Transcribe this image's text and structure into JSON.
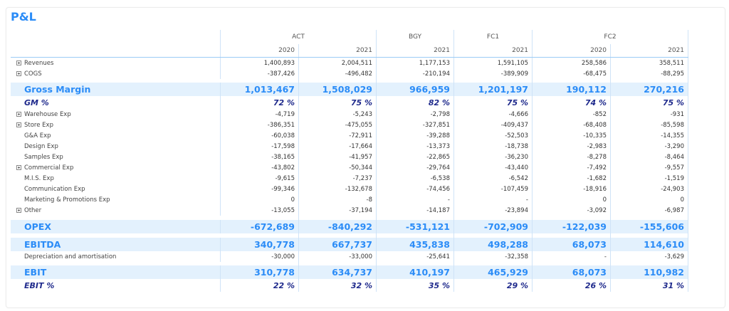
{
  "title": "P&L",
  "colors": {
    "accent": "#2b8cf7",
    "band": "#e3f1fd",
    "pct": "#1f2a8c"
  },
  "header": {
    "groups": [
      {
        "label": "ACT",
        "span": 2
      },
      {
        "label": "BGY",
        "span": 1
      },
      {
        "label": "FC1",
        "span": 1
      },
      {
        "label": "FC2",
        "span": 2
      }
    ],
    "years": [
      "2020",
      "2021",
      "2021",
      "2021",
      "2020",
      "2021"
    ]
  },
  "rows": [
    {
      "label": "Revenues",
      "type": "normal",
      "expand": true,
      "values": [
        "1,400,893",
        "2,004,511",
        "1,177,153",
        "1,591,105",
        "258,586",
        "358,511"
      ]
    },
    {
      "label": "COGS",
      "type": "normal",
      "expand": true,
      "values": [
        "-387,426",
        "-496,482",
        "-210,194",
        "-389,909",
        "-68,475",
        "-88,295"
      ]
    },
    {
      "type": "spacer"
    },
    {
      "label": "Gross Margin",
      "type": "total",
      "values": [
        "1,013,467",
        "1,508,029",
        "966,959",
        "1,201,197",
        "190,112",
        "270,216"
      ]
    },
    {
      "label": "GM %",
      "type": "pct",
      "values": [
        "72 %",
        "75 %",
        "82 %",
        "75 %",
        "74 %",
        "75 %"
      ]
    },
    {
      "label": "Warehouse Exp",
      "type": "normal",
      "expand": true,
      "values": [
        "-4,719",
        "-5,243",
        "-2,798",
        "-4,666",
        "-852",
        "-931"
      ]
    },
    {
      "label": "Store Exp",
      "type": "normal",
      "expand": true,
      "values": [
        "-386,351",
        "-475,055",
        "-327,851",
        "-409,437",
        "-68,408",
        "-85,598"
      ]
    },
    {
      "label": "G&A Exp",
      "type": "normal",
      "expand": false,
      "values": [
        "-60,038",
        "-72,911",
        "-39,288",
        "-52,503",
        "-10,335",
        "-14,355"
      ]
    },
    {
      "label": "Design Exp",
      "type": "normal",
      "expand": false,
      "values": [
        "-17,598",
        "-17,664",
        "-13,373",
        "-18,738",
        "-2,983",
        "-3,290"
      ]
    },
    {
      "label": "Samples Exp",
      "type": "normal",
      "expand": false,
      "values": [
        "-38,165",
        "-41,957",
        "-22,865",
        "-36,230",
        "-8,278",
        "-8,464"
      ]
    },
    {
      "label": "Commercial Exp",
      "type": "normal",
      "expand": true,
      "values": [
        "-43,802",
        "-50,344",
        "-29,764",
        "-43,440",
        "-7,492",
        "-9,557"
      ]
    },
    {
      "label": "M.I.S. Exp",
      "type": "normal",
      "expand": false,
      "values": [
        "-9,615",
        "-7,237",
        "-6,538",
        "-6,542",
        "-1,682",
        "-1,519"
      ]
    },
    {
      "label": "Communication Exp",
      "type": "normal",
      "expand": false,
      "values": [
        "-99,346",
        "-132,678",
        "-74,456",
        "-107,459",
        "-18,916",
        "-24,903"
      ]
    },
    {
      "label": "Marketing & Promotions Exp",
      "type": "normal",
      "expand": false,
      "values": [
        "0",
        "-8",
        "-",
        "-",
        "0",
        "0"
      ]
    },
    {
      "label": "Other",
      "type": "normal",
      "expand": true,
      "values": [
        "-13,055",
        "-37,194",
        "-14,187",
        "-23,894",
        "-3,092",
        "-6,987"
      ]
    },
    {
      "type": "spacer6"
    },
    {
      "label": "OPEX",
      "type": "total",
      "values": [
        "-672,689",
        "-840,292",
        "-531,121",
        "-702,909",
        "-122,039",
        "-155,606"
      ]
    },
    {
      "type": "spacer6"
    },
    {
      "label": "EBITDA",
      "type": "total",
      "values": [
        "340,778",
        "667,737",
        "435,838",
        "498,288",
        "68,073",
        "114,610"
      ]
    },
    {
      "label": "Depreciation and amortisation",
      "type": "normal",
      "expand": false,
      "values": [
        "-30,000",
        "-33,000",
        "-25,641",
        "-32,358",
        "-",
        "-3,629"
      ]
    },
    {
      "type": "spacer"
    },
    {
      "label": "EBIT",
      "type": "total",
      "values": [
        "310,778",
        "634,737",
        "410,197",
        "465,929",
        "68,073",
        "110,982"
      ]
    },
    {
      "label": "EBIT %",
      "type": "pct",
      "values": [
        "22 %",
        "32 %",
        "35 %",
        "29 %",
        "26 %",
        "31 %"
      ]
    }
  ]
}
